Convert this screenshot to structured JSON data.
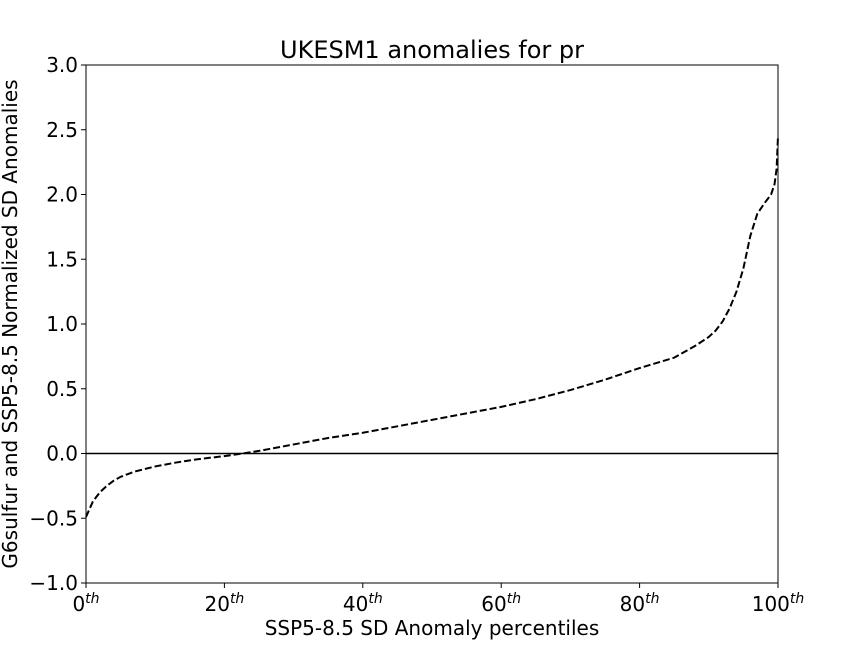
{
  "chart_data": {
    "type": "line",
    "title": "UKESM1 anomalies for pr",
    "xlabel": "SSP5-8.5 SD Anomaly percentiles",
    "ylabel": "G6sulfur and SSP5-8.5 Normalized SD Anomalies",
    "xlim": [
      0,
      100
    ],
    "ylim": [
      -1.0,
      3.0
    ],
    "grid": false,
    "x_ticks": [
      {
        "value": 0,
        "base": "0",
        "sup": "th"
      },
      {
        "value": 20,
        "base": "20",
        "sup": "th"
      },
      {
        "value": 40,
        "base": "40",
        "sup": "th"
      },
      {
        "value": 60,
        "base": "60",
        "sup": "th"
      },
      {
        "value": 80,
        "base": "80",
        "sup": "th"
      },
      {
        "value": 100,
        "base": "100",
        "sup": "th"
      }
    ],
    "y_ticks": [
      {
        "value": -1.0,
        "label": "−1.0"
      },
      {
        "value": -0.5,
        "label": "−0.5"
      },
      {
        "value": 0.0,
        "label": "0.0"
      },
      {
        "value": 0.5,
        "label": "0.5"
      },
      {
        "value": 1.0,
        "label": "1.0"
      },
      {
        "value": 1.5,
        "label": "1.5"
      },
      {
        "value": 2.0,
        "label": "2.0"
      },
      {
        "value": 2.5,
        "label": "2.5"
      },
      {
        "value": 3.0,
        "label": "3.0"
      }
    ],
    "reference_line": {
      "y": 0.0,
      "color": "#000000",
      "style": "solid"
    },
    "series": [
      {
        "color": "#000000",
        "style": "dashed",
        "x": [
          0,
          0.5,
          1,
          2,
          3,
          4,
          5,
          7,
          10,
          13,
          16,
          20,
          22,
          25,
          30,
          35,
          40,
          45,
          50,
          55,
          60,
          65,
          70,
          75,
          80,
          85,
          88,
          90,
          91,
          92,
          93,
          94,
          95,
          96,
          97,
          98,
          99,
          99.5,
          99.8,
          100
        ],
        "y": [
          -0.49,
          -0.43,
          -0.37,
          -0.3,
          -0.25,
          -0.21,
          -0.18,
          -0.14,
          -0.1,
          -0.07,
          -0.045,
          -0.02,
          -0.005,
          0.02,
          0.07,
          0.12,
          0.16,
          0.21,
          0.26,
          0.31,
          0.36,
          0.42,
          0.49,
          0.57,
          0.66,
          0.74,
          0.83,
          0.9,
          0.95,
          1.02,
          1.12,
          1.25,
          1.43,
          1.68,
          1.85,
          1.93,
          2.0,
          2.08,
          2.2,
          2.45
        ]
      }
    ]
  }
}
